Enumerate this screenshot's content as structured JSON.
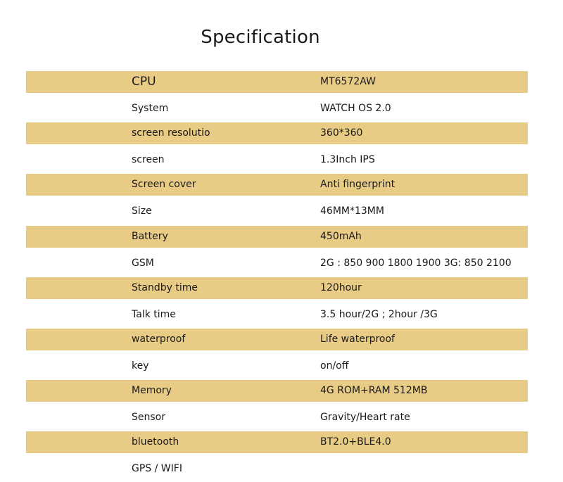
{
  "title": "Specification",
  "band_color": "#e8cb85",
  "rows": [
    {
      "label": "CPU",
      "value": "MT6572AW"
    },
    {
      "label": "System",
      "value": "WATCH OS 2.0"
    },
    {
      "label": "screen resolutio",
      "value": "360*360"
    },
    {
      "label": "screen",
      "value": "1.3Inch IPS"
    },
    {
      "label": "Screen cover",
      "value": "Anti fingerprint"
    },
    {
      "label": "Size",
      "value": "46MM*13MM"
    },
    {
      "label": "Battery",
      "value": "450mAh"
    },
    {
      "label": "GSM",
      "value": "2G  :  850 900 1800 1900 3G: 850 2100"
    },
    {
      "label": "Standby time",
      "value": "120hour"
    },
    {
      "label": "Talk time",
      "value": "3.5 hour/2G ; 2hour /3G"
    },
    {
      "label": "waterproof",
      "value": "Life waterproof"
    },
    {
      "label": "key",
      "value": "on/off"
    },
    {
      "label": "Memory",
      "value": "4G ROM+RAM 512MB"
    },
    {
      "label": "Sensor",
      "value": "Gravity/Heart rate"
    },
    {
      "label": "bluetooth",
      "value": "BT2.0+BLE4.0"
    },
    {
      "label": "GPS / WIFI",
      "value": ""
    }
  ]
}
